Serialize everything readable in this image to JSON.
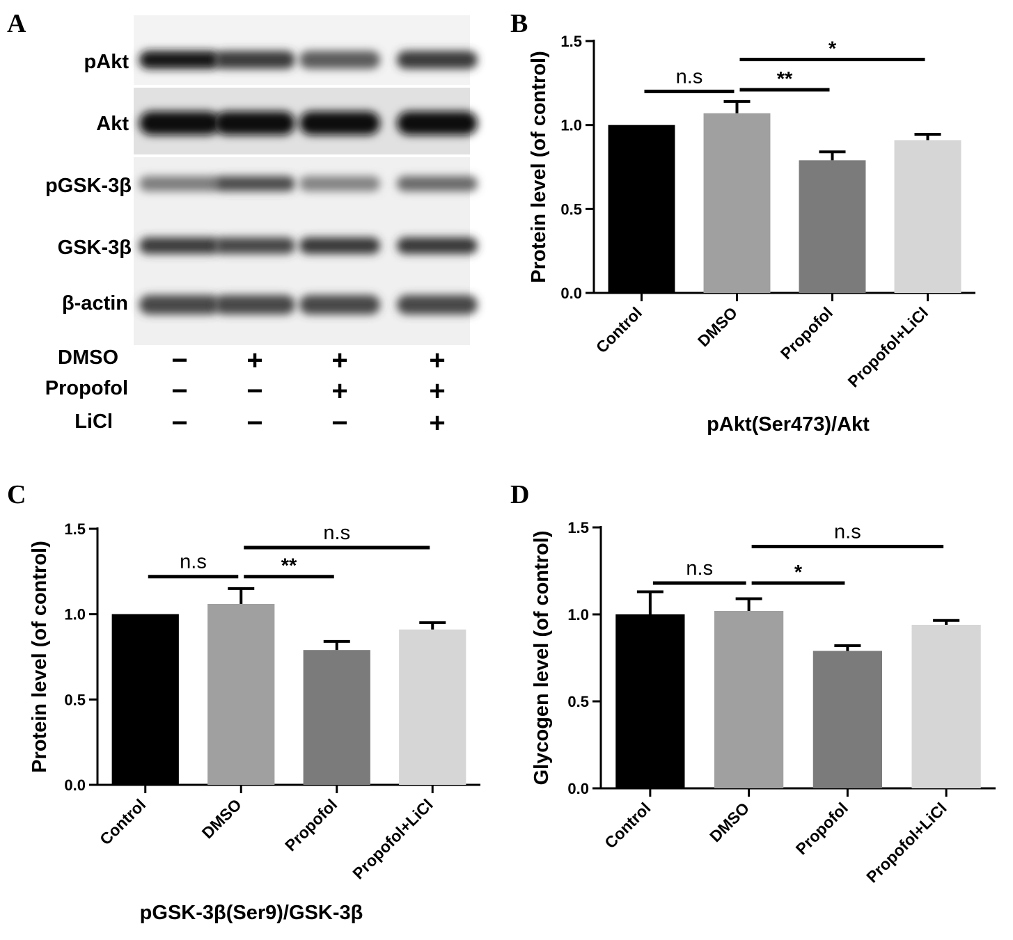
{
  "panel_a": {
    "label": "A",
    "bands": [
      "pAkt",
      "Akt",
      "pGSK-3β",
      "GSK-3β",
      "β-actin"
    ],
    "band_intensity": [
      [
        0.95,
        0.78,
        0.62,
        0.78
      ],
      [
        1.0,
        1.0,
        1.0,
        1.0
      ],
      [
        0.45,
        0.7,
        0.42,
        0.55
      ],
      [
        0.78,
        0.72,
        0.8,
        0.8
      ],
      [
        0.72,
        0.72,
        0.72,
        0.72
      ]
    ],
    "treatments": [
      {
        "name": "DMSO",
        "signs": [
          "−",
          "+",
          "+",
          "+"
        ]
      },
      {
        "name": "Propofol",
        "signs": [
          "−",
          "−",
          "+",
          "+"
        ]
      },
      {
        "name": "LiCl",
        "signs": [
          "−",
          "−",
          "−",
          "+"
        ]
      }
    ]
  },
  "chart_data": [
    {
      "panel": "B",
      "type": "bar",
      "categories": [
        "Control",
        "DMSO",
        "Propofol",
        "Propofol+LiCl"
      ],
      "values": [
        1.0,
        1.07,
        0.79,
        0.91
      ],
      "errors": [
        0.0,
        0.07,
        0.05,
        0.035
      ],
      "colors": [
        "#000000",
        "#a0a0a0",
        "#7b7b7b",
        "#d6d6d6"
      ],
      "xlabel": "pAkt(Ser473)/Akt",
      "ylabel": "Protein level (of control)",
      "ylim": [
        0,
        1.5
      ],
      "yticks": [
        "0.0",
        "0.5",
        "1.0",
        "1.5"
      ],
      "significance": [
        {
          "from": 0,
          "to": 1,
          "y": 1.2,
          "label": "n.s"
        },
        {
          "from": 1,
          "to": 2,
          "y": 1.21,
          "label": "**"
        },
        {
          "from": 1,
          "to": 3,
          "y": 1.39,
          "label": "*"
        }
      ]
    },
    {
      "panel": "C",
      "type": "bar",
      "categories": [
        "Control",
        "DMSO",
        "Propofol",
        "Propofol+LiCl"
      ],
      "values": [
        1.0,
        1.06,
        0.79,
        0.91
      ],
      "errors": [
        0.0,
        0.09,
        0.05,
        0.04
      ],
      "colors": [
        "#000000",
        "#a0a0a0",
        "#7b7b7b",
        "#d6d6d6"
      ],
      "xlabel": "pGSK-3β(Ser9)/GSK-3β",
      "ylabel": "Protein level (of control)",
      "ylim": [
        0,
        1.5
      ],
      "yticks": [
        "0.0",
        "0.5",
        "1.0",
        "1.5"
      ],
      "significance": [
        {
          "from": 0,
          "to": 1,
          "y": 1.22,
          "label": "n.s"
        },
        {
          "from": 1,
          "to": 2,
          "y": 1.22,
          "label": "**"
        },
        {
          "from": 1,
          "to": 3,
          "y": 1.39,
          "label": "n.s"
        }
      ]
    },
    {
      "panel": "D",
      "type": "bar",
      "categories": [
        "Control",
        "DMSO",
        "Propofol",
        "Propofol+LiCl"
      ],
      "values": [
        1.0,
        1.02,
        0.79,
        0.94
      ],
      "errors": [
        0.13,
        0.07,
        0.03,
        0.025
      ],
      "colors": [
        "#000000",
        "#a0a0a0",
        "#7b7b7b",
        "#d6d6d6"
      ],
      "xlabel": "",
      "ylabel": "Glycogen level (of control)",
      "ylim": [
        0,
        1.5
      ],
      "yticks": [
        "0.0",
        "0.5",
        "1.0",
        "1.5"
      ],
      "significance": [
        {
          "from": 0,
          "to": 1,
          "y": 1.18,
          "label": "n.s"
        },
        {
          "from": 1,
          "to": 2,
          "y": 1.18,
          "label": "*"
        },
        {
          "from": 1,
          "to": 3,
          "y": 1.39,
          "label": "n.s"
        }
      ]
    }
  ]
}
